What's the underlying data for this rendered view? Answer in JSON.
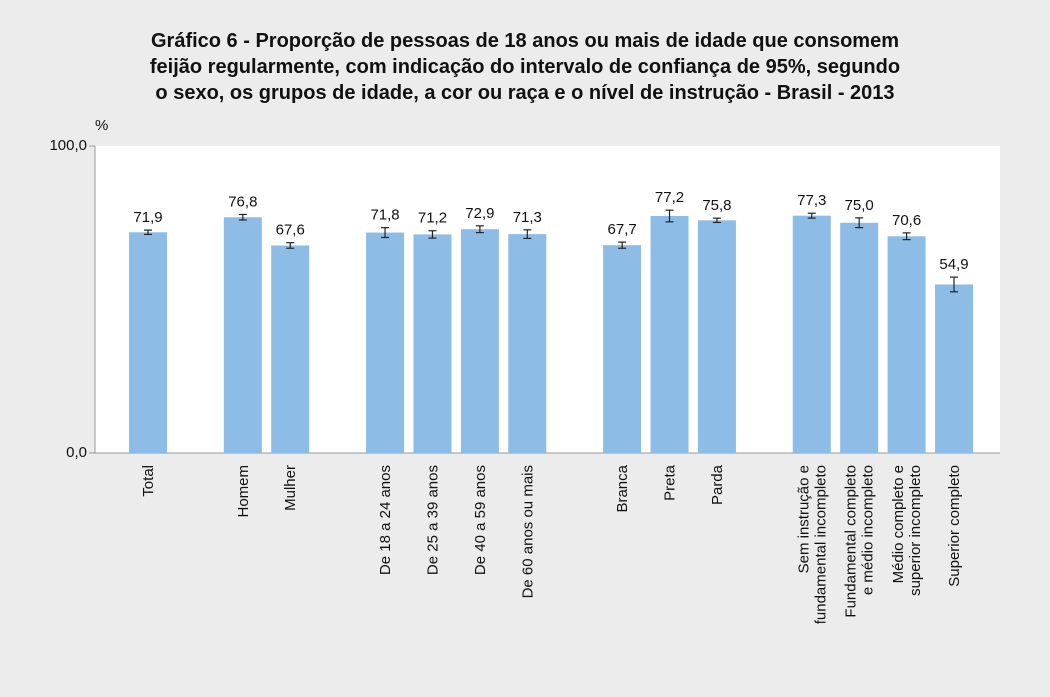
{
  "chart_data": {
    "type": "bar",
    "title": "Gráfico 6 - Proporção de pessoas de 18 anos ou mais de idade que consomem\nfeijão regularmente, com indicação do intervalo de confiança de 95%, segundo\no sexo, os grupos de idade, a cor ou raça e o nível de instrução - Brasil - 2013",
    "y_label": "%",
    "categories": [
      "Total",
      null,
      "Homem",
      "Mulher",
      null,
      "De 18 a 24 anos",
      "De 25 a 39 anos",
      "De 40 a 59 anos",
      "De 60 anos ou mais",
      null,
      "Branca",
      "Preta",
      "Parda",
      null,
      "Sem instrução e\nfundamental incompleto",
      "Fundamental completo\ne médio incompleto",
      "Médio completo e\nsuperior incompleto",
      "Superior completo"
    ],
    "values": [
      71.9,
      null,
      76.8,
      67.6,
      null,
      71.8,
      71.2,
      72.9,
      71.3,
      null,
      67.7,
      77.2,
      75.8,
      null,
      77.3,
      75.0,
      70.6,
      54.9
    ],
    "value_labels": [
      "71,9",
      null,
      "76,8",
      "67,6",
      null,
      "71,8",
      "71,2",
      "72,9",
      "71,3",
      null,
      "67,7",
      "77,2",
      "75,8",
      null,
      "77,3",
      "75,0",
      "70,6",
      "54,9"
    ],
    "errors": [
      0.7,
      null,
      0.9,
      0.9,
      null,
      1.6,
      1.2,
      1.1,
      1.4,
      null,
      1.0,
      1.9,
      0.7,
      null,
      0.8,
      1.6,
      1.1,
      2.4
    ],
    "color": "#8dbde6",
    "ylim": [
      0,
      100
    ],
    "yticks": [
      {
        "value": 0,
        "label": "0,0"
      },
      {
        "value": 100,
        "label": "100,0"
      }
    ]
  }
}
